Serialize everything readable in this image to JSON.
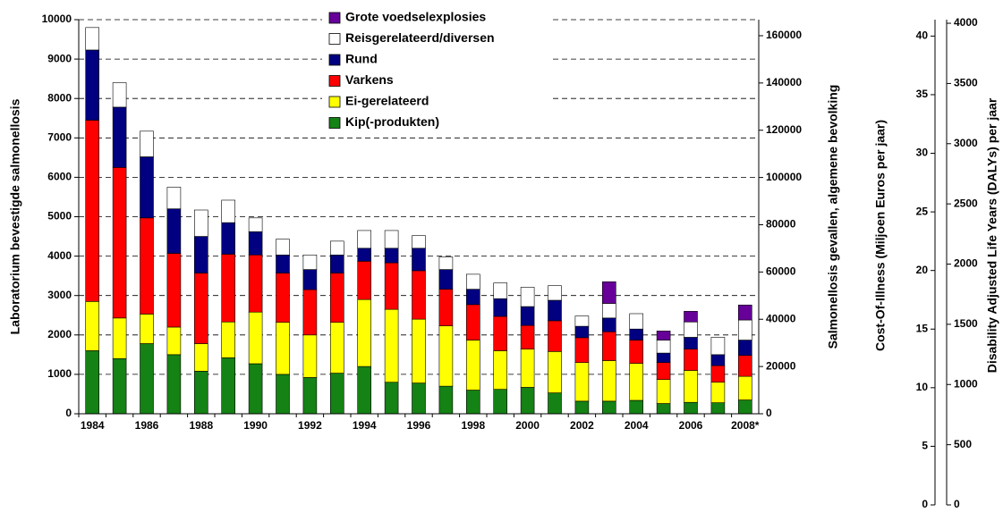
{
  "chart_data": {
    "type": "stacked_bar",
    "categories": [
      "1984",
      null,
      "1986",
      null,
      "1988",
      null,
      "1990",
      null,
      "1992",
      null,
      "1994",
      null,
      "1996",
      null,
      "1998",
      null,
      "2000",
      null,
      "2002",
      null,
      "2004",
      null,
      "2006",
      null,
      "2008*"
    ],
    "series": [
      {
        "name": "Kip(-produkten)",
        "color": "#148214",
        "values": [
          1600,
          1400,
          1780,
          1500,
          1080,
          1420,
          1270,
          1000,
          920,
          1030,
          1200,
          800,
          780,
          700,
          600,
          620,
          670,
          530,
          320,
          320,
          340,
          260,
          290,
          280,
          350
        ]
      },
      {
        "name": "Ei-gerelateerd",
        "color": "#ffff00",
        "values": [
          1250,
          1030,
          750,
          700,
          700,
          910,
          1310,
          1320,
          1080,
          1290,
          1700,
          1850,
          1620,
          1530,
          1270,
          980,
          970,
          1050,
          980,
          1030,
          940,
          610,
          810,
          520,
          600
        ]
      },
      {
        "name": "Varkens",
        "color": "#ff0000",
        "values": [
          4600,
          3820,
          2440,
          1870,
          1790,
          1720,
          1450,
          1250,
          1150,
          1250,
          970,
          1180,
          1230,
          930,
          900,
          870,
          600,
          780,
          630,
          730,
          590,
          430,
          540,
          420,
          530
        ]
      },
      {
        "name": "Rund",
        "color": "#000080",
        "values": [
          1780,
          1530,
          1550,
          1130,
          930,
          800,
          590,
          460,
          510,
          460,
          330,
          370,
          570,
          500,
          390,
          450,
          480,
          520,
          290,
          350,
          280,
          240,
          300,
          280,
          390
        ]
      },
      {
        "name": "Reisgerelateerd/diversen",
        "color": "#ffffff",
        "values": [
          570,
          620,
          650,
          550,
          670,
          570,
          350,
          400,
          370,
          350,
          450,
          450,
          320,
          320,
          380,
          400,
          490,
          370,
          260,
          370,
          390,
          330,
          390,
          440,
          510
        ]
      },
      {
        "name": "Grote voedselexplosies",
        "color": "#660099",
        "values": [
          null,
          null,
          null,
          null,
          null,
          null,
          null,
          null,
          null,
          null,
          null,
          null,
          null,
          null,
          null,
          null,
          null,
          null,
          null,
          550,
          null,
          230,
          270,
          null,
          380
        ]
      }
    ],
    "ylabel": "Laboratorium bevestigde salmonellosis",
    "ylim": [
      0,
      10000
    ],
    "yticks": [
      0,
      1000,
      2000,
      3000,
      4000,
      5000,
      6000,
      7000,
      8000,
      9000,
      10000
    ],
    "y2label": "Salmonellosis gevallen, algemene bevolking",
    "y2lim": [
      0,
      166800
    ],
    "y2ticks": [
      0,
      20000,
      40000,
      60000,
      80000,
      100000,
      120000,
      140000,
      160000
    ],
    "y3label": "Cost-Of-Illness (Miljoen Euros per jaar)",
    "y3lim": [
      0,
      41.4
    ],
    "y3ticks": [
      0,
      5,
      10,
      15,
      20,
      25,
      30,
      35,
      40
    ],
    "y4label": "Disability Adjusted Life Years (DALYs) per jaar",
    "y4lim": [
      0,
      4030
    ],
    "y4ticks": [
      0,
      500,
      1000,
      1500,
      2000,
      2500,
      3000,
      3500,
      4000
    ],
    "grid": true,
    "legend": "top"
  }
}
